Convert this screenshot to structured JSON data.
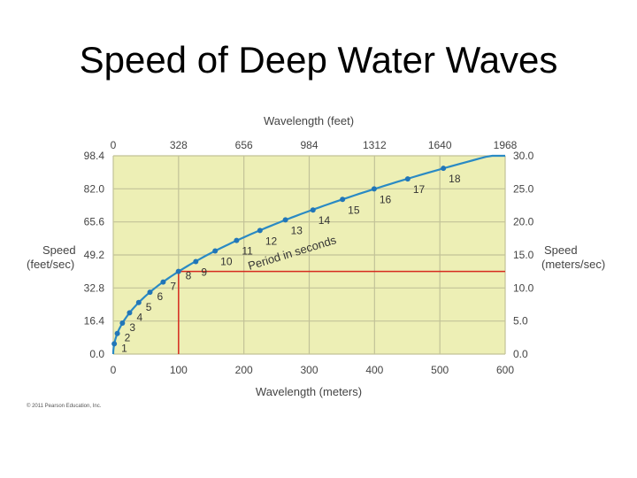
{
  "slide": {
    "title": "Speed of Deep Water Waves",
    "copyright": "© 2011 Pearson Education, Inc."
  },
  "chart_data": {
    "type": "line",
    "title": "Speed of Deep Water Waves",
    "xlabel": "Wavelength (meters)",
    "x2label": "Wavelength (feet)",
    "ylabel_left": [
      "Speed",
      "(feet/sec)"
    ],
    "ylabel_right": [
      "Speed",
      "(meters/sec)"
    ],
    "curve_label": "Period in seconds",
    "xlim": [
      0,
      600
    ],
    "ylim": [
      0,
      30
    ],
    "x_ticks": [
      "0",
      "100",
      "200",
      "300",
      "400",
      "500",
      "600"
    ],
    "x2_ticks": [
      "0",
      "328",
      "656",
      "984",
      "1312",
      "1640",
      "1968"
    ],
    "y_right_ticks": [
      "0.0",
      "5.0",
      "10.0",
      "15.0",
      "20.0",
      "25.0",
      "30.0"
    ],
    "y_left_ticks": [
      "0.0",
      "16.4",
      "32.8",
      "49.2",
      "65.6",
      "82.0",
      "98.4"
    ],
    "series": [
      {
        "name": "Period in seconds",
        "points": [
          {
            "period": "1",
            "wavelength_m": 1.56,
            "speed_ms": 1.56
          },
          {
            "period": "2",
            "wavelength_m": 6.24,
            "speed_ms": 3.12
          },
          {
            "period": "3",
            "wavelength_m": 14.0,
            "speed_ms": 4.68
          },
          {
            "period": "4",
            "wavelength_m": 25.0,
            "speed_ms": 6.24
          },
          {
            "period": "5",
            "wavelength_m": 39.0,
            "speed_ms": 7.8
          },
          {
            "period": "6",
            "wavelength_m": 56.2,
            "speed_ms": 9.36
          },
          {
            "period": "7",
            "wavelength_m": 76.4,
            "speed_ms": 10.9
          },
          {
            "period": "8",
            "wavelength_m": 99.8,
            "speed_ms": 12.5
          },
          {
            "period": "9",
            "wavelength_m": 126.4,
            "speed_ms": 14.0
          },
          {
            "period": "10",
            "wavelength_m": 156.0,
            "speed_ms": 15.6
          },
          {
            "period": "11",
            "wavelength_m": 188.8,
            "speed_ms": 17.2
          },
          {
            "period": "12",
            "wavelength_m": 224.6,
            "speed_ms": 18.7
          },
          {
            "period": "13",
            "wavelength_m": 263.6,
            "speed_ms": 20.3
          },
          {
            "period": "14",
            "wavelength_m": 305.8,
            "speed_ms": 21.8
          },
          {
            "period": "15",
            "wavelength_m": 351.0,
            "speed_ms": 23.4
          },
          {
            "period": "16",
            "wavelength_m": 399.4,
            "speed_ms": 25.0
          },
          {
            "period": "17",
            "wavelength_m": 450.8,
            "speed_ms": 26.5
          },
          {
            "period": "18",
            "wavelength_m": 505.4,
            "speed_ms": 28.1
          }
        ]
      }
    ],
    "reference_point": {
      "wavelength_m": 100,
      "speed_ms": 12.5
    },
    "colors": {
      "plot_bg": "#edefb5",
      "grid": "#c2c298",
      "curve": "#2a8ac4",
      "dot": "#2176b8",
      "reference": "#d62a1e",
      "label": "#333333",
      "tick": "#444444"
    }
  }
}
